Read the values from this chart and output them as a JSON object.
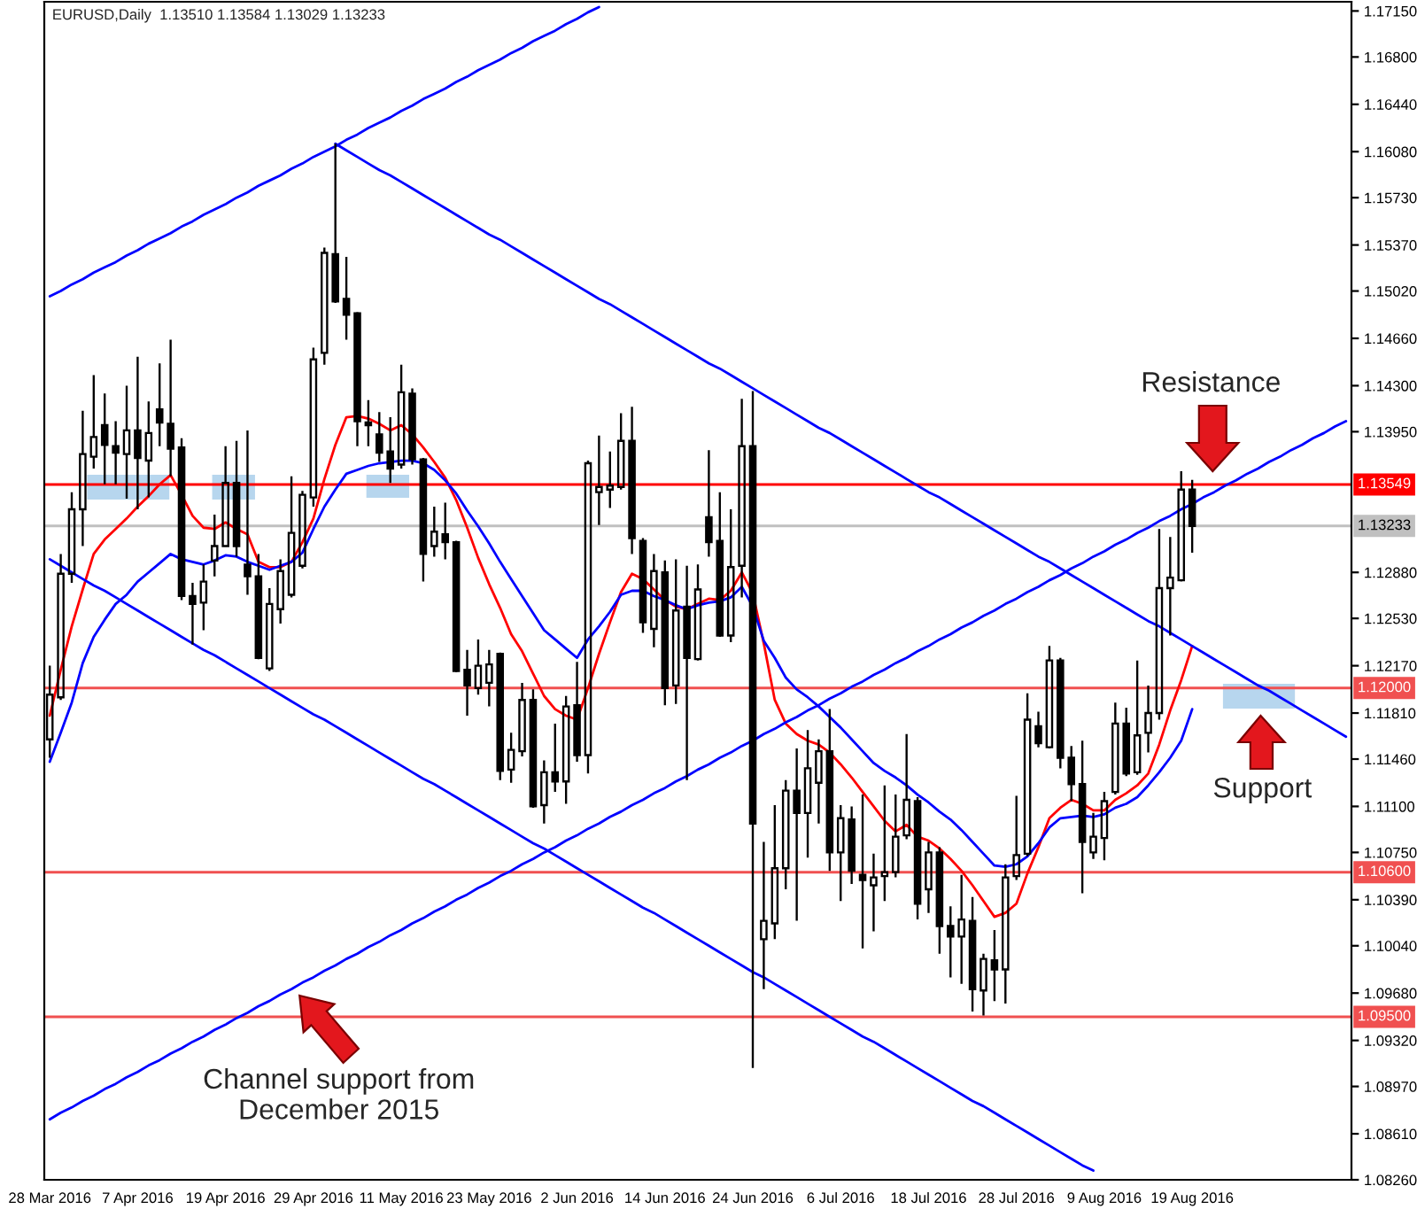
{
  "chart_data": {
    "type": "candlestick",
    "title": "EURUSD,Daily  1.13510 1.13584 1.13029 1.13233",
    "categories": [
      "28 Mar 2016",
      null,
      null,
      null,
      null,
      null,
      null,
      null,
      "7 Apr 2016",
      null,
      null,
      null,
      null,
      null,
      null,
      null,
      "19 Apr 2016",
      null,
      null,
      null,
      null,
      null,
      null,
      null,
      "29 Apr 2016",
      null,
      null,
      null,
      null,
      null,
      null,
      null,
      "11 May 2016",
      null,
      null,
      null,
      null,
      null,
      null,
      null,
      "23 May 2016",
      null,
      null,
      null,
      null,
      null,
      null,
      null,
      "2 Jun 2016",
      null,
      null,
      null,
      null,
      null,
      null,
      null,
      "14 Jun 2016",
      null,
      null,
      null,
      null,
      null,
      null,
      null,
      "24 Jun 2016",
      null,
      null,
      null,
      null,
      null,
      null,
      null,
      "6 Jul 2016",
      null,
      null,
      null,
      null,
      null,
      null,
      null,
      "18 Jul 2016",
      null,
      null,
      null,
      null,
      null,
      null,
      null,
      "28 Jul 2016",
      null,
      null,
      null,
      null,
      null,
      null,
      null,
      "9 Aug 2016",
      null,
      null,
      null,
      null,
      null,
      null,
      null,
      "19 Aug 2016",
      null,
      null,
      null,
      null,
      null,
      null,
      null,
      null,
      null,
      null,
      null,
      null,
      null,
      null
    ],
    "ohlc": [
      [
        1.1161,
        1.1217,
        1.1147,
        1.1195
      ],
      [
        1.1193,
        1.1302,
        1.1191,
        1.1287
      ],
      [
        1.1287,
        1.1349,
        1.128,
        1.1336
      ],
      [
        1.1336,
        1.1411,
        1.1308,
        1.1378
      ],
      [
        1.1376,
        1.1438,
        1.1367,
        1.1391
      ],
      [
        1.14,
        1.1424,
        1.1355,
        1.1385
      ],
      [
        1.1384,
        1.1403,
        1.1355,
        1.1379
      ],
      [
        1.1378,
        1.143,
        1.1344,
        1.1396
      ],
      [
        1.1396,
        1.1452,
        1.1336,
        1.1375
      ],
      [
        1.1373,
        1.1418,
        1.1345,
        1.1394
      ],
      [
        1.1412,
        1.1447,
        1.1384,
        1.1402
      ],
      [
        1.1401,
        1.1465,
        1.1361,
        1.1382
      ],
      [
        1.1383,
        1.139,
        1.1267,
        1.127
      ],
      [
        1.127,
        1.128,
        1.1233,
        1.1264
      ],
      [
        1.1265,
        1.1294,
        1.1244,
        1.1281
      ],
      [
        1.1297,
        1.1332,
        1.1285,
        1.1308
      ],
      [
        1.1308,
        1.1384,
        1.1308,
        1.1356
      ],
      [
        1.1356,
        1.1388,
        1.13,
        1.1308
      ],
      [
        1.1294,
        1.1396,
        1.1271,
        1.1285
      ],
      [
        1.1285,
        1.1302,
        1.1222,
        1.1223
      ],
      [
        1.1215,
        1.1276,
        1.1213,
        1.1264
      ],
      [
        1.126,
        1.1298,
        1.1249,
        1.1289
      ],
      [
        1.1271,
        1.1361,
        1.1269,
        1.1318
      ],
      [
        1.1293,
        1.135,
        1.1291,
        1.1347
      ],
      [
        1.1345,
        1.1459,
        1.1338,
        1.145
      ],
      [
        1.1455,
        1.1535,
        1.1446,
        1.1531
      ],
      [
        1.153,
        1.1614,
        1.1493,
        1.1494
      ],
      [
        1.1496,
        1.1528,
        1.1465,
        1.1484
      ],
      [
        1.1485,
        1.1486,
        1.1384,
        1.1403
      ],
      [
        1.1402,
        1.1419,
        1.1384,
        1.14
      ],
      [
        1.1393,
        1.141,
        1.1372,
        1.1379
      ],
      [
        1.138,
        1.1406,
        1.1356,
        1.1367
      ],
      [
        1.137,
        1.1446,
        1.1367,
        1.1425
      ],
      [
        1.1424,
        1.1428,
        1.137,
        1.1374
      ],
      [
        1.1374,
        1.1375,
        1.1281,
        1.1302
      ],
      [
        1.1308,
        1.1338,
        1.13,
        1.1319
      ],
      [
        1.1317,
        1.1341,
        1.1298,
        1.1311
      ],
      [
        1.1311,
        1.1312,
        1.1212,
        1.1213
      ],
      [
        1.1214,
        1.1229,
        1.1179,
        1.1202
      ],
      [
        1.12,
        1.1237,
        1.1195,
        1.1217
      ],
      [
        1.1204,
        1.1229,
        1.1186,
        1.1218
      ],
      [
        1.1226,
        1.1227,
        1.113,
        1.1137
      ],
      [
        1.1138,
        1.1166,
        1.1128,
        1.1153
      ],
      [
        1.1152,
        1.1204,
        1.1148,
        1.1191
      ],
      [
        1.1191,
        1.1199,
        1.1109,
        1.111
      ],
      [
        1.1111,
        1.1145,
        1.1097,
        1.1136
      ],
      [
        1.1136,
        1.1173,
        1.1121,
        1.1129
      ],
      [
        1.1129,
        1.1194,
        1.1112,
        1.1186
      ],
      [
        1.1187,
        1.122,
        1.1144,
        1.1149
      ],
      [
        1.1149,
        1.1373,
        1.1135,
        1.1371
      ],
      [
        1.1349,
        1.1392,
        1.1324,
        1.1353
      ],
      [
        1.1351,
        1.138,
        1.1337,
        1.1354
      ],
      [
        1.1353,
        1.1409,
        1.1351,
        1.1388
      ],
      [
        1.1388,
        1.1414,
        1.1302,
        1.1314
      ],
      [
        1.1312,
        1.1314,
        1.1242,
        1.125
      ],
      [
        1.1245,
        1.1302,
        1.1231,
        1.1289
      ],
      [
        1.1288,
        1.1297,
        1.1187,
        1.12
      ],
      [
        1.1202,
        1.1298,
        1.1188,
        1.1259
      ],
      [
        1.1262,
        1.1293,
        1.113,
        1.1223
      ],
      [
        1.1222,
        1.1294,
        1.1221,
        1.1275
      ],
      [
        1.133,
        1.1381,
        1.13,
        1.1311
      ],
      [
        1.1312,
        1.1349,
        1.1239,
        1.124
      ],
      [
        1.124,
        1.1336,
        1.1235,
        1.1292
      ],
      [
        1.1293,
        1.142,
        1.1269,
        1.1384
      ],
      [
        1.1384,
        1.1426,
        1.0911,
        1.1097
      ],
      [
        1.1009,
        1.1083,
        1.0971,
        1.1023
      ],
      [
        1.1021,
        1.1111,
        1.1009,
        1.1063
      ],
      [
        1.1063,
        1.113,
        1.1047,
        1.1122
      ],
      [
        1.1122,
        1.1154,
        1.1023,
        1.1105
      ],
      [
        1.1105,
        1.1168,
        1.1071,
        1.1139
      ],
      [
        1.1128,
        1.1161,
        1.1097,
        1.1152
      ],
      [
        1.1152,
        1.1184,
        1.1061,
        1.1075
      ],
      [
        1.1075,
        1.1111,
        1.1038,
        1.1101
      ],
      [
        1.11,
        1.111,
        1.1051,
        1.1061
      ],
      [
        1.1058,
        1.1119,
        1.1002,
        1.1054
      ],
      [
        1.105,
        1.1074,
        1.1015,
        1.1056
      ],
      [
        1.1057,
        1.1126,
        1.1038,
        1.106
      ],
      [
        1.106,
        1.1119,
        1.1056,
        1.1087
      ],
      [
        1.1088,
        1.1165,
        1.1085,
        1.1115
      ],
      [
        1.1114,
        1.1117,
        1.1024,
        1.1036
      ],
      [
        1.1047,
        1.1083,
        1.1029,
        1.1075
      ],
      [
        1.1075,
        1.1079,
        1.0998,
        1.1019
      ],
      [
        1.1019,
        1.1034,
        1.098,
        1.1011
      ],
      [
        1.1011,
        1.1058,
        1.0975,
        1.1024
      ],
      [
        1.1023,
        1.1041,
        1.0954,
        1.0971
      ],
      [
        1.097,
        1.0998,
        1.0951,
        1.0994
      ],
      [
        1.0993,
        1.1016,
        1.0962,
        1.0986
      ],
      [
        1.0986,
        1.1066,
        1.096,
        1.1056
      ],
      [
        1.1057,
        1.1118,
        1.1054,
        1.1073
      ],
      [
        1.1074,
        1.1196,
        1.1072,
        1.1176
      ],
      [
        1.1171,
        1.1182,
        1.1155,
        1.1158
      ],
      [
        1.1155,
        1.1232,
        1.1154,
        1.1221
      ],
      [
        1.1221,
        1.1223,
        1.1139,
        1.1147
      ],
      [
        1.1147,
        1.1156,
        1.1114,
        1.1127
      ],
      [
        1.1127,
        1.116,
        1.1044,
        1.1083
      ],
      [
        1.1075,
        1.1105,
        1.107,
        1.1087
      ],
      [
        1.1086,
        1.1121,
        1.1069,
        1.1114
      ],
      [
        1.1121,
        1.1189,
        1.1119,
        1.1173
      ],
      [
        1.1173,
        1.1185,
        1.1133,
        1.1135
      ],
      [
        1.1136,
        1.1221,
        1.1134,
        1.1164
      ],
      [
        1.1166,
        1.1202,
        1.1151,
        1.1181
      ],
      [
        1.1181,
        1.1321,
        1.1176,
        1.1276
      ],
      [
        1.1276,
        1.1315,
        1.124,
        1.1284
      ],
      [
        1.1282,
        1.1365,
        1.1281,
        1.1351
      ],
      [
        1.1351,
        1.13584,
        1.13029,
        1.13233
      ],
      null,
      null,
      null,
      null,
      null,
      null,
      null,
      null,
      null,
      null,
      null,
      null,
      null,
      null
    ],
    "series": [
      {
        "type": "line",
        "color": "#ff0000",
        "values": [
          1.1179,
          1.1214,
          1.1247,
          1.1275,
          1.1302,
          1.1313,
          1.1321,
          1.1329,
          1.1338,
          1.1346,
          1.1355,
          1.1362,
          1.1347,
          1.1331,
          1.1322,
          1.1321,
          1.1326,
          1.1321,
          1.1317,
          1.1296,
          1.1292,
          1.1292,
          1.1296,
          1.1311,
          1.1329,
          1.1359,
          1.1385,
          1.1406,
          1.1407,
          1.1405,
          1.1401,
          1.1396,
          1.14,
          1.1393,
          1.1383,
          1.1372,
          1.136,
          1.1343,
          1.1322,
          1.1299,
          1.1279,
          1.1261,
          1.1241,
          1.1228,
          1.1211,
          1.1194,
          1.1184,
          1.1179,
          1.1176,
          1.12,
          1.1226,
          1.125,
          1.1273,
          1.1287,
          1.1283,
          1.1275,
          1.1267,
          1.1262,
          1.126,
          1.1264,
          1.1268,
          1.1267,
          1.1274,
          1.1288,
          1.1272,
          1.1234,
          1.1191,
          1.1173,
          1.1165,
          1.116,
          1.1157,
          1.1151,
          1.1142,
          1.1132,
          1.1121,
          1.111,
          1.1099,
          1.1091,
          1.1096,
          1.1087,
          1.1084,
          1.1078,
          1.107,
          1.1061,
          1.105,
          1.1038,
          1.1026,
          1.1029,
          1.1036,
          1.1059,
          1.1079,
          1.1101,
          1.1109,
          1.1115,
          1.1112,
          1.1107,
          1.1107,
          1.1115,
          1.112,
          1.1126,
          1.1135,
          1.1157,
          1.1183,
          1.1206,
          1.1232,
          null,
          null,
          null,
          null,
          null,
          null,
          null,
          null,
          null,
          null,
          null,
          null,
          null,
          null
        ]
      },
      {
        "type": "line",
        "color": "#0000ff",
        "values": [
          1.1144,
          1.1166,
          1.1189,
          1.1219,
          1.1239,
          1.1252,
          1.1264,
          1.1271,
          1.1281,
          1.1288,
          1.1295,
          1.1302,
          1.1298,
          1.1296,
          1.1294,
          1.1297,
          1.1301,
          1.13,
          1.1296,
          1.1293,
          1.129,
          1.1293,
          1.1296,
          1.1303,
          1.1321,
          1.1338,
          1.1351,
          1.1363,
          1.1366,
          1.1369,
          1.1371,
          1.1372,
          1.1373,
          1.1373,
          1.1371,
          1.1366,
          1.1358,
          1.1348,
          1.1335,
          1.1323,
          1.131,
          1.1296,
          1.1283,
          1.127,
          1.1257,
          1.1244,
          1.1237,
          1.123,
          1.1223,
          1.1237,
          1.1247,
          1.1258,
          1.1271,
          1.1274,
          1.1274,
          1.127,
          1.1267,
          1.1263,
          1.126,
          1.1263,
          1.1265,
          1.1266,
          1.1269,
          1.1277,
          1.1262,
          1.1236,
          1.1223,
          1.1208,
          1.1199,
          1.1193,
          1.1186,
          1.1178,
          1.117,
          1.1161,
          1.1152,
          1.1143,
          1.1137,
          1.1132,
          1.1126,
          1.1119,
          1.1113,
          1.1106,
          1.11,
          1.1092,
          1.1083,
          1.1074,
          1.1065,
          1.1064,
          1.1066,
          1.1072,
          1.1082,
          1.1094,
          1.1101,
          1.1102,
          1.1103,
          1.1102,
          1.1104,
          1.1109,
          1.1112,
          1.1117,
          1.1126,
          1.1136,
          1.1147,
          1.116,
          1.1184,
          null,
          null,
          null,
          null,
          null,
          null,
          null,
          null,
          null,
          null,
          null,
          null,
          null,
          null
        ]
      },
      {
        "type": "line",
        "color": "#0000ff",
        "values": [
          1.1498,
          1.1502,
          1.1507,
          1.1511,
          1.1516,
          1.152,
          1.1524,
          1.1529,
          1.1533,
          1.1538,
          1.1542,
          1.1546,
          1.1551,
          1.1555,
          1.156,
          1.1564,
          1.1568,
          1.1573,
          1.1577,
          1.1582,
          1.1586,
          1.159,
          1.1595,
          1.1599,
          1.1604,
          1.1608,
          1.1612,
          1.1617,
          1.1621,
          1.1626,
          1.163,
          1.1634,
          1.1639,
          1.1643,
          1.1648,
          1.1652,
          1.1656,
          1.1661,
          1.1665,
          1.167,
          1.1674,
          1.1678,
          1.1683,
          1.1687,
          1.1692,
          1.1696,
          1.17,
          1.1705,
          1.1709,
          1.1714,
          1.1718,
          null,
          null,
          null,
          null,
          null,
          null,
          null,
          null,
          null,
          null,
          null,
          null,
          null,
          null,
          null,
          null,
          null,
          null,
          null,
          null,
          null,
          null,
          null,
          null,
          null,
          null,
          null,
          null,
          null,
          null,
          null,
          null,
          null,
          null,
          null,
          null,
          null,
          null,
          null,
          null,
          null,
          null,
          null,
          null,
          null,
          null,
          null,
          null,
          null,
          null,
          null,
          null,
          null,
          null,
          null,
          null,
          null,
          null,
          null,
          null,
          null,
          null,
          null,
          null,
          null,
          null,
          null,
          null
        ]
      },
      {
        "type": "line",
        "color": "#0000ff",
        "values": [
          null,
          null,
          null,
          null,
          null,
          null,
          null,
          null,
          null,
          null,
          null,
          null,
          null,
          null,
          null,
          null,
          null,
          null,
          null,
          null,
          null,
          null,
          null,
          null,
          null,
          null,
          1.1614,
          1.1609,
          1.1604,
          1.1599,
          1.1594,
          1.159,
          1.1585,
          1.158,
          1.1575,
          1.157,
          1.1565,
          1.156,
          1.1555,
          1.155,
          1.1545,
          1.1541,
          1.1536,
          1.1531,
          1.1526,
          1.1521,
          1.1516,
          1.1511,
          1.1506,
          1.1501,
          1.1496,
          1.1492,
          1.1487,
          1.1482,
          1.1477,
          1.1472,
          1.1467,
          1.1462,
          1.1457,
          1.1452,
          1.1447,
          1.1443,
          1.1438,
          1.1433,
          1.1428,
          1.1423,
          1.1418,
          1.1413,
          1.1408,
          1.1403,
          1.1398,
          1.1394,
          1.1389,
          1.1384,
          1.1379,
          1.1374,
          1.1369,
          1.1364,
          1.1359,
          1.1354,
          1.1349,
          1.1345,
          1.134,
          1.1335,
          1.133,
          1.1325,
          1.132,
          1.1315,
          1.131,
          1.1305,
          1.13,
          1.1296,
          1.1291,
          1.1286,
          1.1281,
          1.1276,
          1.1271,
          1.1266,
          1.1261,
          1.1256,
          1.1251,
          1.1247,
          1.1242,
          1.1237,
          1.1232,
          1.1227,
          1.1222,
          1.1217,
          1.1212,
          1.1207,
          1.1202,
          1.1198,
          1.1193,
          1.1188,
          1.1183,
          1.1178,
          1.1173,
          1.1168,
          1.1163
        ]
      },
      {
        "type": "line",
        "color": "#0000ff",
        "values": [
          1.1298,
          1.1293,
          1.1288,
          1.1283,
          1.1278,
          1.1274,
          1.1269,
          1.1264,
          1.1259,
          1.1254,
          1.1249,
          1.1244,
          1.1239,
          1.1234,
          1.1229,
          1.1225,
          1.122,
          1.1215,
          1.121,
          1.1205,
          1.12,
          1.1195,
          1.119,
          1.1185,
          1.118,
          1.1176,
          1.1171,
          1.1166,
          1.1161,
          1.1156,
          1.1151,
          1.1146,
          1.1141,
          1.1136,
          1.1131,
          1.1127,
          1.1122,
          1.1117,
          1.1112,
          1.1107,
          1.1102,
          1.1097,
          1.1092,
          1.1087,
          1.1082,
          1.1078,
          1.1073,
          1.1068,
          1.1063,
          1.1058,
          1.1053,
          1.1048,
          1.1043,
          1.1038,
          1.1033,
          1.1029,
          1.1024,
          1.1019,
          1.1014,
          1.1009,
          1.1004,
          1.0999,
          1.0994,
          1.0989,
          1.0984,
          1.098,
          1.0975,
          1.097,
          1.0965,
          1.096,
          1.0955,
          1.095,
          1.0945,
          1.094,
          1.0935,
          1.0931,
          1.0926,
          1.0921,
          1.0916,
          1.0911,
          1.0906,
          1.0901,
          1.0896,
          1.0891,
          1.0886,
          1.0882,
          1.0877,
          1.0872,
          1.0867,
          1.0862,
          1.0857,
          1.0852,
          1.0847,
          1.0842,
          1.0837,
          1.0833,
          null,
          null,
          null,
          null,
          null,
          null,
          null,
          null,
          null,
          null,
          null,
          null,
          null,
          null,
          null,
          null,
          null,
          null,
          null,
          null,
          null,
          null,
          null
        ]
      },
      {
        "type": "line",
        "color": "#0000ff",
        "values": [
          1.0872,
          1.0877,
          1.0881,
          1.0886,
          1.089,
          1.0895,
          1.0899,
          1.0904,
          1.0908,
          1.0913,
          1.0917,
          1.0922,
          1.0926,
          1.0931,
          1.0935,
          1.094,
          1.0944,
          1.0949,
          1.0953,
          1.0958,
          1.0962,
          1.0967,
          1.0971,
          1.0976,
          1.098,
          1.0985,
          1.0989,
          1.0994,
          1.0998,
          1.1003,
          1.1007,
          1.1012,
          1.1016,
          1.1021,
          1.1025,
          1.103,
          1.1034,
          1.1039,
          1.1043,
          1.1048,
          1.1052,
          1.1057,
          1.1061,
          1.1066,
          1.107,
          1.1075,
          1.1079,
          1.1084,
          1.1088,
          1.1093,
          1.1097,
          1.1102,
          1.1106,
          1.1111,
          1.1115,
          1.112,
          1.1124,
          1.1129,
          1.1133,
          1.1138,
          1.1142,
          1.1147,
          1.1151,
          1.1156,
          1.116,
          1.1165,
          1.1169,
          1.1174,
          1.1178,
          1.1183,
          1.1187,
          1.1192,
          1.1196,
          1.1201,
          1.1205,
          1.121,
          1.1214,
          1.1219,
          1.1223,
          1.1228,
          1.1232,
          1.1237,
          1.1241,
          1.1246,
          1.125,
          1.1255,
          1.1259,
          1.1264,
          1.1268,
          1.1273,
          1.1277,
          1.1282,
          1.1286,
          1.1291,
          1.1295,
          1.13,
          1.1304,
          1.1309,
          1.1313,
          1.1318,
          1.1322,
          1.1327,
          1.1331,
          1.1336,
          1.134,
          1.1345,
          1.1349,
          1.1354,
          1.1358,
          1.1363,
          1.1367,
          1.1372,
          1.1376,
          1.1381,
          1.1385,
          1.139,
          1.1394,
          1.1399,
          1.1403
        ]
      }
    ],
    "ylim": [
      1.0826,
      1.1722
    ],
    "yticks": [
      {
        "value": 1.1715,
        "label": "1.17150"
      },
      {
        "value": 1.168,
        "label": "1.16800"
      },
      {
        "value": 1.1644,
        "label": "1.16440"
      },
      {
        "value": 1.1608,
        "label": "1.16080"
      },
      {
        "value": 1.1573,
        "label": "1.15730"
      },
      {
        "value": 1.1537,
        "label": "1.15370"
      },
      {
        "value": 1.1502,
        "label": "1.15020"
      },
      {
        "value": 1.1466,
        "label": "1.14660"
      },
      {
        "value": 1.143,
        "label": "1.14300"
      },
      {
        "value": 1.1395,
        "label": "1.13950"
      },
      {
        "value": 1.1288,
        "label": "1.12880"
      },
      {
        "value": 1.1253,
        "label": "1.12530"
      },
      {
        "value": 1.1217,
        "label": "1.12170"
      },
      {
        "value": 1.1181,
        "label": "1.11810"
      },
      {
        "value": 1.1146,
        "label": "1.11460"
      },
      {
        "value": 1.111,
        "label": "1.11100"
      },
      {
        "value": 1.1075,
        "label": "1.10750"
      },
      {
        "value": 1.1039,
        "label": "1.10390"
      },
      {
        "value": 1.1004,
        "label": "1.10040"
      },
      {
        "value": 1.0968,
        "label": "1.09680"
      },
      {
        "value": 1.0932,
        "label": "1.09320"
      },
      {
        "value": 1.0897,
        "label": "1.08970"
      },
      {
        "value": 1.0861,
        "label": "1.08610"
      },
      {
        "value": 1.0826,
        "label": "1.08260"
      }
    ],
    "ref_lines": [
      {
        "axis": "y",
        "value": 1.13549,
        "label": "1.13549",
        "color": "#ff0000"
      },
      {
        "axis": "y",
        "value": 1.12,
        "label": "1.12000",
        "color": "#f05050"
      },
      {
        "axis": "y",
        "value": 1.106,
        "label": "1.10600",
        "color": "#f05050"
      },
      {
        "axis": "y",
        "value": 1.095,
        "label": "1.09500",
        "color": "#f05050"
      },
      {
        "axis": "y",
        "value": 1.13233,
        "label": "1.13233",
        "color": "#c0c0c0"
      }
    ],
    "annotations": [
      "Resistance",
      "Support",
      "Channel support from\nDecember 2015"
    ]
  }
}
